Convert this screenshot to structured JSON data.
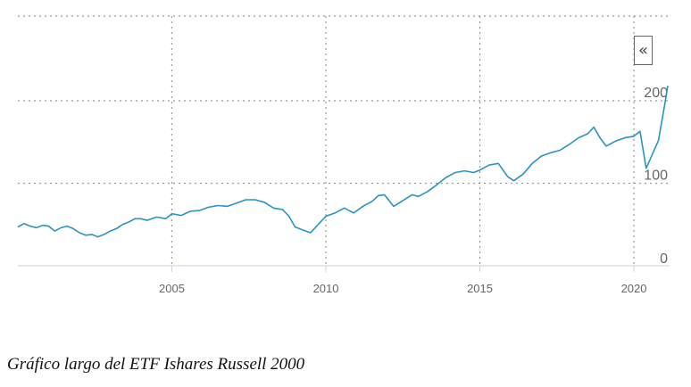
{
  "caption": "Gráfico largo del ETF Ishares Russell 2000",
  "collapse_button": {
    "label": "«"
  },
  "chart_data": {
    "type": "line",
    "xlim": [
      2000.0,
      2021.1
    ],
    "ylim": [
      0,
      220
    ],
    "x_ticks": [
      2005,
      2010,
      2015,
      2020
    ],
    "x_tick_labels": [
      "2005",
      "2010",
      "2015",
      "2020"
    ],
    "y_ticks": [
      0,
      100,
      200
    ],
    "y_tick_labels": [
      "0",
      "100",
      "200"
    ],
    "grid": true,
    "line_color": "#2b93c1",
    "series": [
      {
        "x": [
          2000.0,
          2000.2,
          2000.4,
          2000.6,
          2000.8,
          2001.0,
          2001.2,
          2001.4,
          2001.6,
          2001.8,
          2002.0,
          2002.2,
          2002.4,
          2002.6,
          2002.8,
          2003.0,
          2003.2,
          2003.4,
          2003.6,
          2003.8,
          2004.0,
          2004.2,
          2004.5,
          2004.8,
          2005.0,
          2005.3,
          2005.6,
          2005.9,
          2006.2,
          2006.5,
          2006.8,
          2007.1,
          2007.4,
          2007.7,
          2008.0,
          2008.3,
          2008.6,
          2008.8,
          2009.0,
          2009.2,
          2009.5,
          2009.8,
          2010.0,
          2010.3,
          2010.6,
          2010.9,
          2011.2,
          2011.5,
          2011.7,
          2011.9,
          2012.2,
          2012.5,
          2012.8,
          2013.0,
          2013.3,
          2013.6,
          2013.9,
          2014.2,
          2014.5,
          2014.8,
          2015.0,
          2015.3,
          2015.6,
          2015.9,
          2016.1,
          2016.4,
          2016.7,
          2017.0,
          2017.3,
          2017.6,
          2017.9,
          2018.2,
          2018.5,
          2018.7,
          2018.9,
          2019.1,
          2019.4,
          2019.7,
          2020.0,
          2020.2,
          2020.4,
          2020.6,
          2020.8,
          2021.0,
          2021.1
        ],
        "y": [
          47,
          51,
          48,
          46,
          49,
          48,
          42,
          46,
          48,
          45,
          40,
          37,
          38,
          35,
          38,
          42,
          45,
          50,
          53,
          57,
          57,
          55,
          59,
          57,
          63,
          61,
          66,
          67,
          71,
          73,
          72,
          76,
          80,
          80,
          77,
          70,
          68,
          60,
          47,
          44,
          40,
          52,
          60,
          64,
          70,
          64,
          72,
          78,
          85,
          86,
          72,
          79,
          86,
          84,
          90,
          98,
          107,
          113,
          115,
          113,
          116,
          122,
          124,
          108,
          103,
          111,
          124,
          133,
          137,
          140,
          147,
          155,
          160,
          168,
          155,
          145,
          151,
          155,
          157,
          163,
          118,
          135,
          152,
          195,
          218
        ]
      }
    ]
  }
}
